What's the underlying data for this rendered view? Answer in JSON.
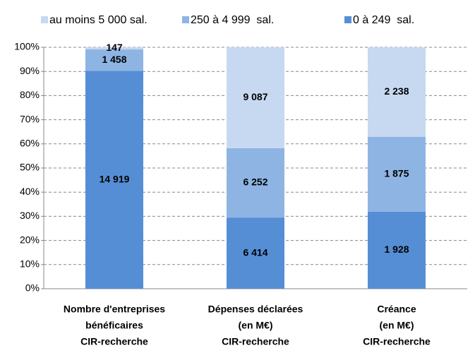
{
  "chart_data": {
    "type": "bar",
    "stacking": "percent",
    "categories": [
      [
        "Nombre d'entreprises",
        "bénéficaires",
        "CIR-recherche"
      ],
      [
        "Dépenses déclarées",
        "(en M€)",
        "CIR-recherche"
      ],
      [
        "Créance",
        "(en M€)",
        "CIR-recherche"
      ]
    ],
    "series": [
      {
        "name": "0 à 249  sal.",
        "color": "#558ed5",
        "values": [
          14919,
          6414,
          1928
        ],
        "value_labels": [
          "14 919",
          "6 414",
          "1 928"
        ]
      },
      {
        "name": "250 à 4 999  sal.",
        "color": "#8eb4e3",
        "values": [
          1458,
          6252,
          1875
        ],
        "value_labels": [
          "1 458",
          "6 252",
          "1 875"
        ]
      },
      {
        "name": "au moins 5 000 sal.",
        "color": "#c6d9f1",
        "values": [
          147,
          9087,
          2238
        ],
        "value_labels": [
          "147",
          "9 087",
          "2 238"
        ]
      }
    ],
    "ylim": [
      0,
      100
    ],
    "yticks": [
      {
        "value": 0,
        "label": "0%"
      },
      {
        "value": 10,
        "label": "10%"
      },
      {
        "value": 20,
        "label": "20%"
      },
      {
        "value": 30,
        "label": "30%"
      },
      {
        "value": 40,
        "label": "40%"
      },
      {
        "value": 50,
        "label": "50%"
      },
      {
        "value": 60,
        "label": "60%"
      },
      {
        "value": 70,
        "label": "70%"
      },
      {
        "value": 80,
        "label": "80%"
      },
      {
        "value": 90,
        "label": "90%"
      },
      {
        "value": 100,
        "label": "100%"
      }
    ],
    "grid": true,
    "legend": "top"
  }
}
